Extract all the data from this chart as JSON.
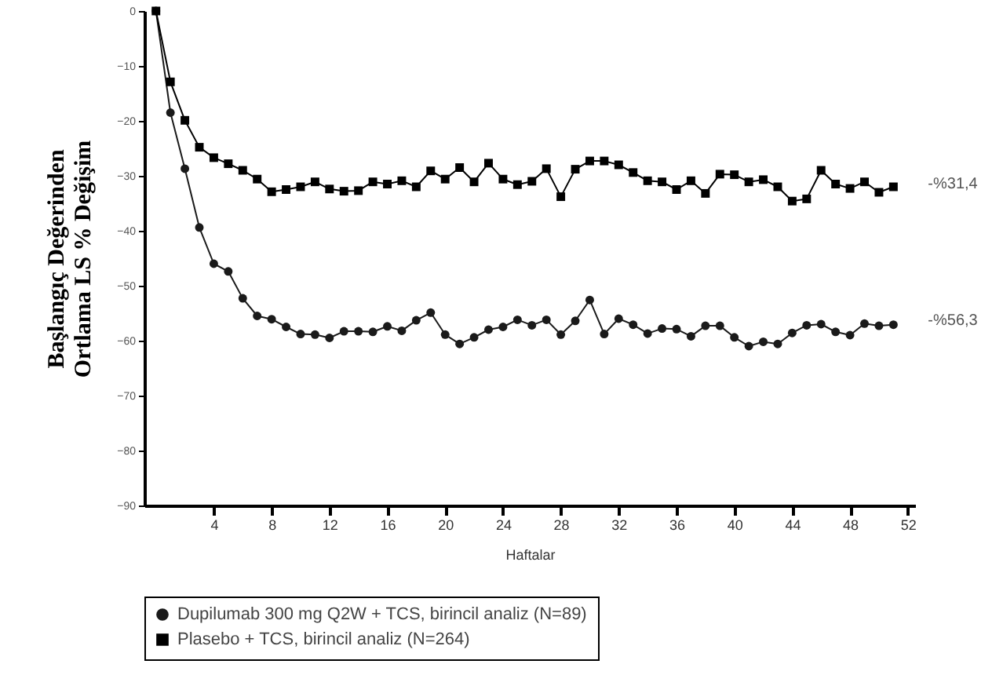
{
  "chart_data": {
    "type": "line",
    "xlabel": "Haftalar",
    "ylabel": "Başlangıç Değerinden\nOrtlama LS % Değişim",
    "x": [
      0,
      1,
      2,
      3,
      4,
      5,
      6,
      7,
      8,
      9,
      10,
      11,
      12,
      13,
      14,
      15,
      16,
      17,
      18,
      19,
      20,
      21,
      22,
      23,
      24,
      25,
      26,
      27,
      28,
      29,
      30,
      31,
      32,
      33,
      34,
      35,
      36,
      37,
      38,
      39,
      40,
      41,
      42,
      43,
      44,
      45,
      46,
      47,
      48,
      49,
      50,
      51
    ],
    "series": [
      {
        "name": "Dupilumab 300 mg Q2W + TCS, birincil analiz (N=89)",
        "color": "#1a1a1a",
        "marker": "circle",
        "values": [
          0,
          -18.5,
          -28.7,
          -39.4,
          -46,
          -47.4,
          -52.3,
          -55.5,
          -56.1,
          -57.5,
          -58.8,
          -58.9,
          -59.5,
          -58.3,
          -58.3,
          -58.4,
          -57.4,
          -58.2,
          -56.3,
          -54.9,
          -58.9,
          -60.6,
          -59.4,
          -58,
          -57.5,
          -56.2,
          -57.2,
          -56.2,
          -58.9,
          -56.4,
          -52.6,
          -58.8,
          -56,
          -57.1,
          -58.7,
          -57.8,
          -57.9,
          -59.2,
          -57.3,
          -57.3,
          -59.4,
          -61,
          -60.2,
          -60.6,
          -58.6,
          -57.2,
          -57,
          -58.4,
          -59,
          -56.9,
          -57.3,
          -57.1
        ]
      },
      {
        "name": "Plasebo + TCS, birincil analiz (N=264)",
        "color": "#000000",
        "marker": "square",
        "values": [
          0,
          -12.9,
          -19.9,
          -24.8,
          -26.7,
          -27.8,
          -29,
          -30.6,
          -32.9,
          -32.5,
          -32,
          -31.1,
          -32.4,
          -32.8,
          -32.7,
          -31.1,
          -31.5,
          -30.9,
          -32,
          -29.1,
          -30.6,
          -28.5,
          -31.1,
          -27.7,
          -30.6,
          -31.6,
          -31,
          -28.7,
          -33.8,
          -28.8,
          -27.3,
          -27.3,
          -28,
          -29.4,
          -30.9,
          -31.1,
          -32.5,
          -30.9,
          -33.2,
          -29.7,
          -29.8,
          -31.1,
          -30.7,
          -32,
          -34.6,
          -34.2,
          -29,
          -31.5,
          -32.3,
          -31.1,
          -33,
          -32
        ]
      }
    ],
    "annotations": [
      {
        "text": "-%31,4",
        "x": 51,
        "y": -31.4
      },
      {
        "text": "-%56,3",
        "x": 51,
        "y": -56.3
      }
    ],
    "xlim": [
      -0.8,
      52.5
    ],
    "xticks": [
      4,
      8,
      12,
      16,
      20,
      24,
      28,
      32,
      36,
      40,
      44,
      48,
      52
    ],
    "ylim": [
      -90,
      0
    ],
    "yticks": [
      0,
      -10,
      -20,
      -30,
      -40,
      -50,
      -60,
      -70,
      -80,
      -90
    ],
    "grid": false,
    "legend": "bottom",
    "line_style": "solid"
  }
}
